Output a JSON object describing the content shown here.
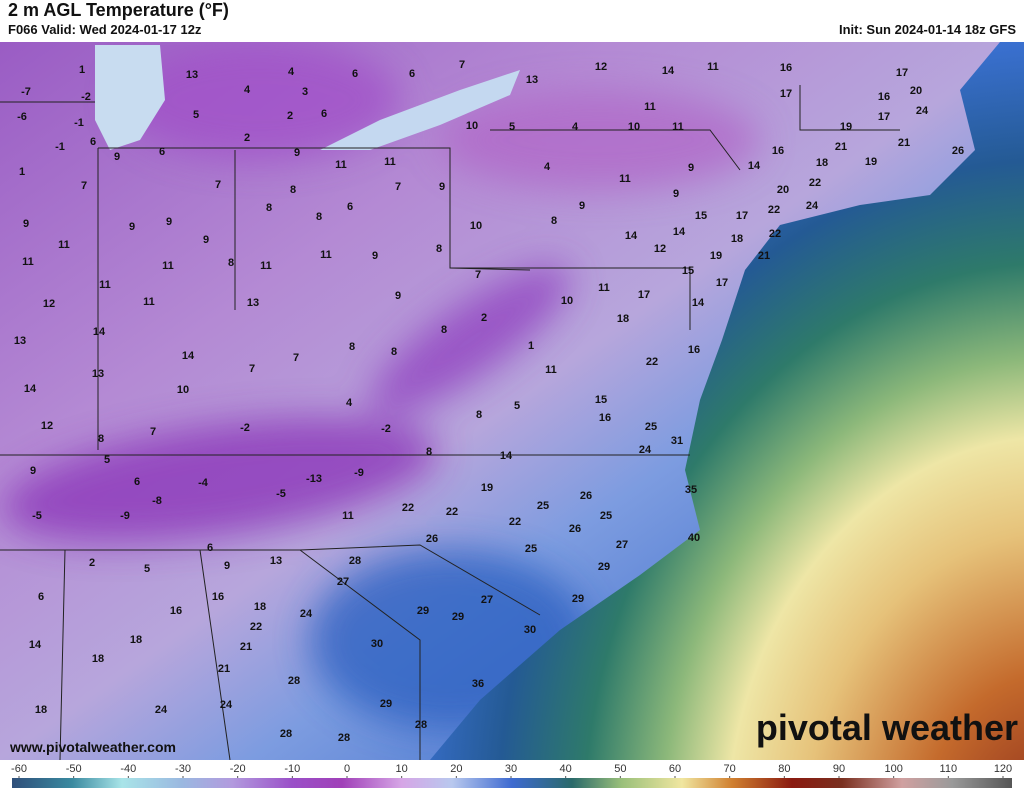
{
  "header": {
    "title": "2 m AGL Temperature (°F)",
    "valid": "F066 Valid: Wed 2024-01-17 12z",
    "init": "Init: Sun 2024-01-14 18z GFS"
  },
  "map": {
    "labels": [
      -7,
      -2,
      -6,
      -1,
      -1,
      6,
      1,
      9,
      6,
      7,
      7,
      9,
      9,
      9,
      9,
      11,
      11,
      11,
      8,
      11,
      11,
      11,
      12,
      13,
      14,
      13,
      14,
      13,
      14,
      10,
      7,
      7,
      12,
      8,
      7,
      -2,
      4,
      -2,
      5,
      9,
      6,
      -8,
      -4,
      -5,
      -13,
      -9,
      -5,
      -9,
      11,
      6,
      2,
      5,
      9,
      13,
      6,
      16,
      16,
      18,
      14,
      18,
      18,
      22,
      21,
      24,
      21,
      28,
      18,
      24,
      24,
      28,
      28,
      29,
      28,
      36,
      30,
      29,
      29,
      27,
      30,
      28,
      27,
      26,
      22,
      22,
      19,
      22,
      25,
      26,
      25,
      26,
      25,
      27,
      29,
      29,
      35,
      40,
      24,
      31,
      25,
      16,
      15,
      14,
      8,
      8,
      5,
      11,
      1,
      2,
      8,
      8,
      8,
      9,
      7,
      10,
      11,
      17,
      18,
      22,
      16,
      14,
      17,
      15,
      19,
      21,
      18,
      12,
      14,
      14,
      15,
      17,
      22,
      22,
      24,
      20,
      22,
      18,
      16,
      14,
      21,
      19,
      21,
      26,
      19,
      17,
      16,
      20,
      24,
      17,
      17,
      16,
      11,
      14,
      12,
      13,
      7,
      6,
      6,
      13,
      4,
      4,
      3,
      5,
      2,
      6,
      2,
      9,
      11,
      11,
      10,
      5,
      4,
      10,
      11,
      11,
      4,
      11,
      9,
      9,
      9,
      8,
      10,
      7,
      9,
      8,
      8,
      8,
      6,
      8,
      11,
      9,
      1
    ]
  },
  "website": "www.pivotalweather.com",
  "logo": "pivotal weather",
  "legend": {
    "ticks": [
      -60,
      -50,
      -40,
      -30,
      -20,
      -10,
      0,
      10,
      20,
      30,
      40,
      50,
      60,
      70,
      80,
      90,
      100,
      110,
      120
    ]
  }
}
